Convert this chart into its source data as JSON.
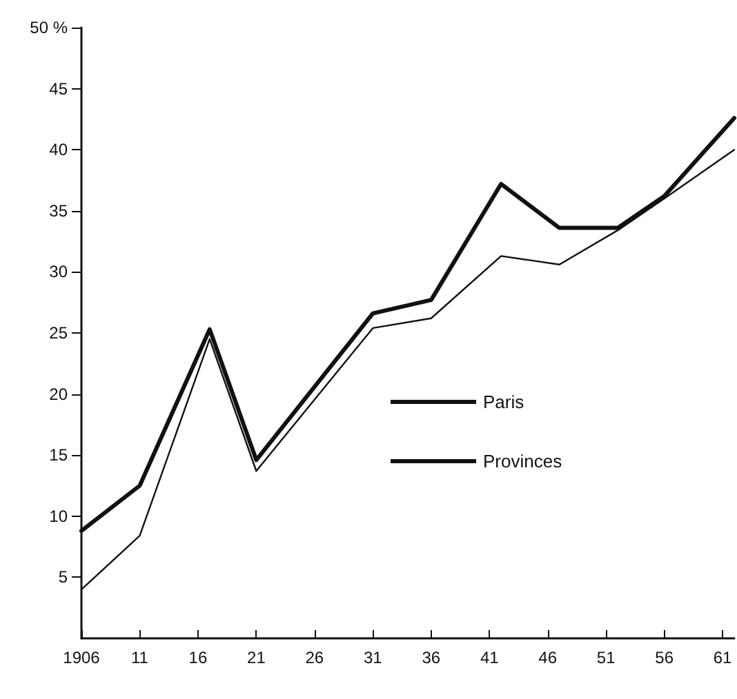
{
  "chart_data": {
    "type": "line",
    "x": [
      1906,
      1911,
      1917,
      1921,
      1931,
      1936,
      1942,
      1947,
      1952,
      1956,
      1962
    ],
    "series": [
      {
        "name": "Paris",
        "color": "#111111",
        "values": [
          8.8,
          12.5,
          25.3,
          14.6,
          26.6,
          27.7,
          37.2,
          33.6,
          33.6,
          36.2,
          42.6
        ]
      },
      {
        "name": "Provinces",
        "color": "#111111",
        "values": [
          4.0,
          8.4,
          24.5,
          13.7,
          25.4,
          26.2,
          31.3,
          30.6,
          33.4,
          36.0,
          40.0
        ]
      }
    ],
    "xlim": [
      1906,
      1962
    ],
    "xticks": [
      1906,
      {
        "value": 1911,
        "label": "11"
      },
      {
        "value": 1916,
        "label": "16"
      },
      {
        "value": 1921,
        "label": "21"
      },
      {
        "value": 1926,
        "label": "26"
      },
      {
        "value": 1931,
        "label": "31"
      },
      {
        "value": 1936,
        "label": "36"
      },
      {
        "value": 1941,
        "label": "41"
      },
      {
        "value": 1946,
        "label": "46"
      },
      {
        "value": 1951,
        "label": "51"
      },
      {
        "value": 1956,
        "label": "56"
      },
      {
        "value": 1961,
        "label": "61"
      }
    ],
    "ylim": [
      0,
      50
    ],
    "yticks": [
      5,
      10,
      15,
      20,
      25,
      30,
      35,
      40,
      45,
      {
        "value": 50,
        "label": "50 %"
      }
    ],
    "grid": false,
    "legend": "center",
    "marker": "none",
    "line_style": "solid"
  }
}
